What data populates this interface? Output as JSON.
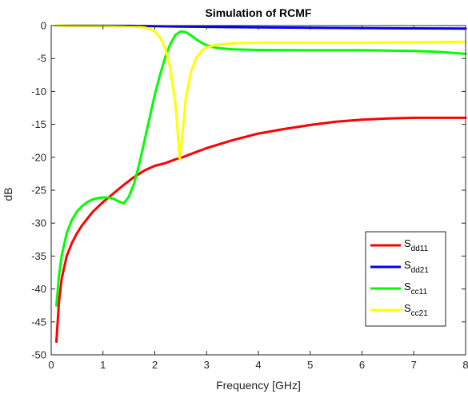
{
  "chart_data": {
    "type": "line",
    "title": "Simulation of RCMF",
    "xlabel": "Frequency [GHz]",
    "ylabel": "dB",
    "xlim": [
      0,
      8
    ],
    "ylim": [
      -50,
      0
    ],
    "xticks": [
      "0",
      "1",
      "2",
      "3",
      "4",
      "5",
      "6",
      "7",
      "8"
    ],
    "yticks": [
      "0",
      "-5",
      "-10",
      "-15",
      "-20",
      "-25",
      "-30",
      "-35",
      "-40",
      "-45",
      "-50"
    ],
    "grid": false,
    "legend_position": "bottom-right",
    "series": [
      {
        "name_main": "S",
        "name_sub": "dd11",
        "color": "#ff0000",
        "points": [
          [
            0.1,
            -48
          ],
          [
            0.15,
            -42
          ],
          [
            0.2,
            -38.5
          ],
          [
            0.3,
            -35
          ],
          [
            0.4,
            -33
          ],
          [
            0.5,
            -31.5
          ],
          [
            0.6,
            -30.3
          ],
          [
            0.8,
            -28.3
          ],
          [
            1.0,
            -26.8
          ],
          [
            1.2,
            -25.5
          ],
          [
            1.4,
            -24.2
          ],
          [
            1.6,
            -23
          ],
          [
            1.8,
            -22
          ],
          [
            2.0,
            -21.3
          ],
          [
            2.2,
            -20.9
          ],
          [
            2.4,
            -20.3
          ],
          [
            2.5,
            -20.1
          ],
          [
            2.8,
            -19.2
          ],
          [
            3.0,
            -18.6
          ],
          [
            3.5,
            -17.4
          ],
          [
            4.0,
            -16.4
          ],
          [
            4.5,
            -15.7
          ],
          [
            5.0,
            -15.1
          ],
          [
            5.5,
            -14.6
          ],
          [
            6.0,
            -14.3
          ],
          [
            6.5,
            -14.1
          ],
          [
            7.0,
            -14.0
          ],
          [
            7.5,
            -14.0
          ],
          [
            8.0,
            -14.0
          ]
        ]
      },
      {
        "name_main": "S",
        "name_sub": "dd21",
        "color": "#0000ff",
        "points": [
          [
            0.1,
            0
          ],
          [
            1.0,
            -0.02
          ],
          [
            1.5,
            -0.05
          ],
          [
            2.0,
            -0.1
          ],
          [
            2.5,
            -0.15
          ],
          [
            3.0,
            -0.2
          ],
          [
            4.0,
            -0.28
          ],
          [
            5.0,
            -0.33
          ],
          [
            6.0,
            -0.38
          ],
          [
            7.0,
            -0.42
          ],
          [
            8.0,
            -0.45
          ]
        ]
      },
      {
        "name_main": "S",
        "name_sub": "cc11",
        "color": "#00ff00",
        "points": [
          [
            0.1,
            -42.5
          ],
          [
            0.15,
            -38
          ],
          [
            0.2,
            -35
          ],
          [
            0.3,
            -31.5
          ],
          [
            0.4,
            -29.5
          ],
          [
            0.5,
            -28.2
          ],
          [
            0.6,
            -27.4
          ],
          [
            0.7,
            -26.8
          ],
          [
            0.8,
            -26.4
          ],
          [
            0.9,
            -26.2
          ],
          [
            1.0,
            -26.1
          ],
          [
            1.1,
            -26.1
          ],
          [
            1.2,
            -26.3
          ],
          [
            1.3,
            -26.7
          ],
          [
            1.4,
            -27
          ],
          [
            1.5,
            -26
          ],
          [
            1.6,
            -24
          ],
          [
            1.7,
            -21
          ],
          [
            1.8,
            -17.5
          ],
          [
            1.9,
            -14
          ],
          [
            2.0,
            -10.5
          ],
          [
            2.1,
            -7.5
          ],
          [
            2.2,
            -4.8
          ],
          [
            2.3,
            -2.8
          ],
          [
            2.4,
            -1.4
          ],
          [
            2.5,
            -0.9
          ],
          [
            2.6,
            -1.0
          ],
          [
            2.7,
            -1.5
          ],
          [
            2.8,
            -2.1
          ],
          [
            2.9,
            -2.6
          ],
          [
            3.0,
            -3.0
          ],
          [
            3.2,
            -3.4
          ],
          [
            3.5,
            -3.6
          ],
          [
            4.0,
            -3.7
          ],
          [
            5.0,
            -3.75
          ],
          [
            6.0,
            -3.75
          ],
          [
            7.0,
            -3.85
          ],
          [
            7.5,
            -4.0
          ],
          [
            8.0,
            -4.3
          ]
        ]
      },
      {
        "name_main": "S",
        "name_sub": "cc21",
        "color": "#ffff00",
        "points": [
          [
            0.1,
            0
          ],
          [
            0.5,
            -0.02
          ],
          [
            1.0,
            -0.05
          ],
          [
            1.4,
            -0.08
          ],
          [
            1.6,
            -0.15
          ],
          [
            1.8,
            -0.3
          ],
          [
            1.9,
            -0.5
          ],
          [
            2.0,
            -0.9
          ],
          [
            2.1,
            -1.8
          ],
          [
            2.2,
            -3.4
          ],
          [
            2.3,
            -6.5
          ],
          [
            2.4,
            -12
          ],
          [
            2.45,
            -17
          ],
          [
            2.48,
            -20.3
          ],
          [
            2.52,
            -17.5
          ],
          [
            2.6,
            -11
          ],
          [
            2.7,
            -7
          ],
          [
            2.8,
            -4.9
          ],
          [
            2.9,
            -3.9
          ],
          [
            3.0,
            -3.3
          ],
          [
            3.2,
            -2.9
          ],
          [
            3.5,
            -2.7
          ],
          [
            4.0,
            -2.6
          ],
          [
            5.0,
            -2.6
          ],
          [
            6.0,
            -2.6
          ],
          [
            7.0,
            -2.55
          ],
          [
            8.0,
            -2.45
          ]
        ]
      }
    ]
  }
}
